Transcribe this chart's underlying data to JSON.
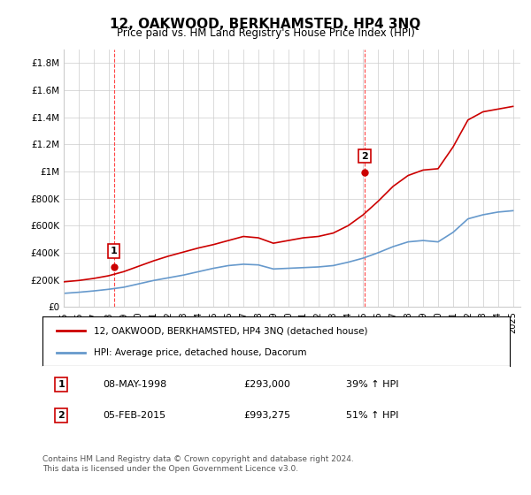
{
  "title": "12, OAKWOOD, BERKHAMSTED, HP4 3NQ",
  "subtitle": "Price paid vs. HM Land Registry's House Price Index (HPI)",
  "xlabel": "",
  "ylabel": "",
  "ylim": [
    0,
    1900000
  ],
  "xlim_start": 1995,
  "xlim_end": 2025.5,
  "yticks": [
    0,
    200000,
    400000,
    600000,
    800000,
    1000000,
    1200000,
    1400000,
    1600000,
    1800000
  ],
  "ytick_labels": [
    "£0",
    "£200K",
    "£400K",
    "£600K",
    "£800K",
    "£1M",
    "£1.2M",
    "£1.4M",
    "£1.6M",
    "£1.8M"
  ],
  "xtick_years": [
    1995,
    1996,
    1997,
    1998,
    1999,
    2000,
    2001,
    2002,
    2003,
    2004,
    2005,
    2006,
    2007,
    2008,
    2009,
    2010,
    2011,
    2012,
    2013,
    2014,
    2015,
    2016,
    2017,
    2018,
    2019,
    2020,
    2021,
    2022,
    2023,
    2024,
    2025
  ],
  "sale1_x": 1998.35,
  "sale1_y": 293000,
  "sale1_label": "1",
  "sale2_x": 2015.09,
  "sale2_y": 993275,
  "sale2_label": "2",
  "red_line_color": "#cc0000",
  "blue_line_color": "#6699cc",
  "dashed_line_color": "#ff4444",
  "background_color": "#ffffff",
  "grid_color": "#cccccc",
  "annotation_box_color": "#cc0000",
  "legend_label_red": "12, OAKWOOD, BERKHAMSTED, HP4 3NQ (detached house)",
  "legend_label_blue": "HPI: Average price, detached house, Dacorum",
  "table_row1": [
    "1",
    "08-MAY-1998",
    "£293,000",
    "39% ↑ HPI"
  ],
  "table_row2": [
    "2",
    "05-FEB-2015",
    "£993,275",
    "51% ↑ HPI"
  ],
  "footer": "Contains HM Land Registry data © Crown copyright and database right 2024.\nThis data is licensed under the Open Government Licence v3.0.",
  "hpi_years": [
    1995,
    1996,
    1997,
    1998,
    1999,
    2000,
    2001,
    2002,
    2003,
    2004,
    2005,
    2006,
    2007,
    2008,
    2009,
    2010,
    2011,
    2012,
    2013,
    2014,
    2015,
    2016,
    2017,
    2018,
    2019,
    2020,
    2021,
    2022,
    2023,
    2024,
    2025
  ],
  "hpi_values": [
    100000,
    108000,
    118000,
    130000,
    145000,
    170000,
    195000,
    215000,
    235000,
    260000,
    285000,
    305000,
    315000,
    310000,
    280000,
    285000,
    290000,
    295000,
    305000,
    330000,
    360000,
    400000,
    445000,
    480000,
    490000,
    480000,
    550000,
    650000,
    680000,
    700000,
    710000
  ],
  "price_years": [
    1995,
    1996,
    1997,
    1998,
    1999,
    2000,
    2001,
    2002,
    2003,
    2004,
    2005,
    2006,
    2007,
    2008,
    2009,
    2010,
    2011,
    2012,
    2013,
    2014,
    2015,
    2016,
    2017,
    2018,
    2019,
    2020,
    2021,
    2022,
    2023,
    2024,
    2025
  ],
  "price_values": [
    185000,
    195000,
    210000,
    230000,
    260000,
    300000,
    340000,
    375000,
    405000,
    435000,
    460000,
    490000,
    520000,
    510000,
    470000,
    490000,
    510000,
    520000,
    545000,
    600000,
    680000,
    780000,
    890000,
    970000,
    1010000,
    1020000,
    1180000,
    1380000,
    1440000,
    1460000,
    1480000
  ]
}
